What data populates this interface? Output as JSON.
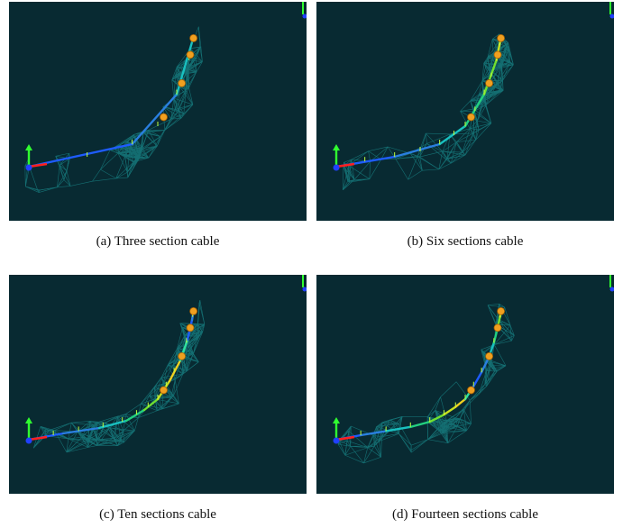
{
  "figure": {
    "background": "#082a32",
    "mesh_color": "#1fa8a8",
    "joint_color": "#f0a020",
    "panels": [
      {
        "id": "a",
        "caption": "(a) Three section cable",
        "sections": 3
      },
      {
        "id": "b",
        "caption": "(b) Six sections cable",
        "sections": 6
      },
      {
        "id": "c",
        "caption": "(c) Ten sections cable",
        "sections": 10
      },
      {
        "id": "d",
        "caption": "(d) Fourteen sections cable",
        "sections": 14
      }
    ]
  }
}
